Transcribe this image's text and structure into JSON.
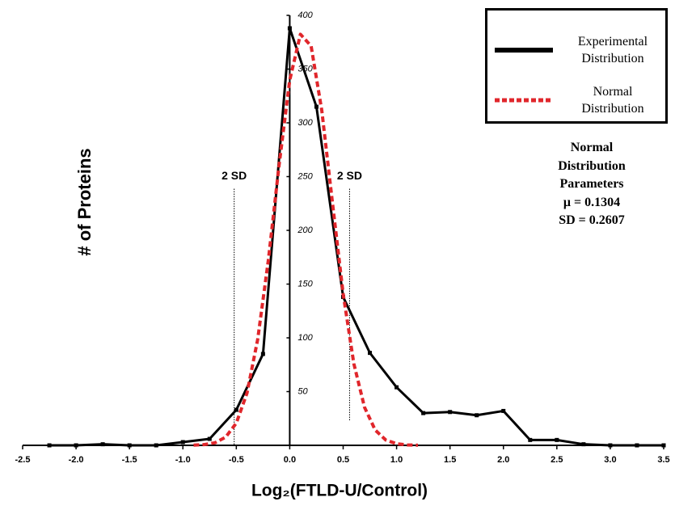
{
  "chart_data": {
    "type": "line",
    "xlabel": "Log₂(FTLD-U/Control)",
    "ylabel": "# of Proteins",
    "xlim": [
      -2.5,
      3.5
    ],
    "ylim": [
      0,
      400
    ],
    "xticks": [
      -2.5,
      {
        "value": -2,
        "label": "-2.0"
      },
      -1.5,
      {
        "value": -1,
        "label": "-1.0"
      },
      -0.5,
      {
        "value": 0,
        "label": "0.0"
      },
      0.5,
      {
        "value": 1,
        "label": "1.0"
      },
      1.5,
      {
        "value": 2,
        "label": "2.0"
      },
      2.5,
      {
        "value": 3,
        "label": "3.0"
      },
      3.5
    ],
    "yticks": [
      50,
      100,
      150,
      200,
      250,
      300,
      350,
      400
    ],
    "series": [
      {
        "name": "Experimental Distribution",
        "color": "#000000",
        "style": "solid",
        "markers": true,
        "x": [
          -2.25,
          -2,
          -1.75,
          -1.5,
          -1.25,
          -1,
          -0.75,
          -0.5,
          -0.25,
          0,
          0.25,
          0.5,
          0.75,
          1,
          1.25,
          1.5,
          1.75,
          2,
          2.25,
          2.5,
          2.75,
          3,
          3.25,
          3.5
        ],
        "values": [
          0,
          0,
          1,
          0,
          0,
          3,
          6,
          33,
          85,
          388,
          315,
          138,
          86,
          54,
          30,
          31,
          28,
          32,
          5,
          5,
          1,
          0,
          0,
          0
        ]
      },
      {
        "name": "Normal Distribution",
        "color": "#e0262b",
        "style": "dashed",
        "markers": false,
        "x": [
          -0.9,
          -0.8,
          -0.7,
          -0.6,
          -0.5,
          -0.4,
          -0.3,
          -0.2,
          -0.1,
          0,
          0.1,
          0.2,
          0.3,
          0.4,
          0.5,
          0.6,
          0.7,
          0.8,
          0.9,
          1.0,
          1.1,
          1.2
        ],
        "values": [
          0.2,
          0.7,
          2.4,
          7.6,
          20.7,
          48.6,
          98.5,
          172.4,
          260.5,
          339.7,
          382.4,
          371.5,
          311.5,
          225.5,
          140.9,
          76,
          35.4,
          14.2,
          4.9,
          1.5,
          0.4,
          0.1
        ]
      }
    ],
    "reference_lines": [
      {
        "label": "2 SD",
        "x": -0.52,
        "y": 250
      },
      {
        "label": "2 SD",
        "x": 0.56,
        "y": 250
      }
    ],
    "annotation": [
      "Normal",
      "Distribution",
      "Parameters",
      "μ = 0.1304",
      "SD = 0.2607"
    ]
  }
}
